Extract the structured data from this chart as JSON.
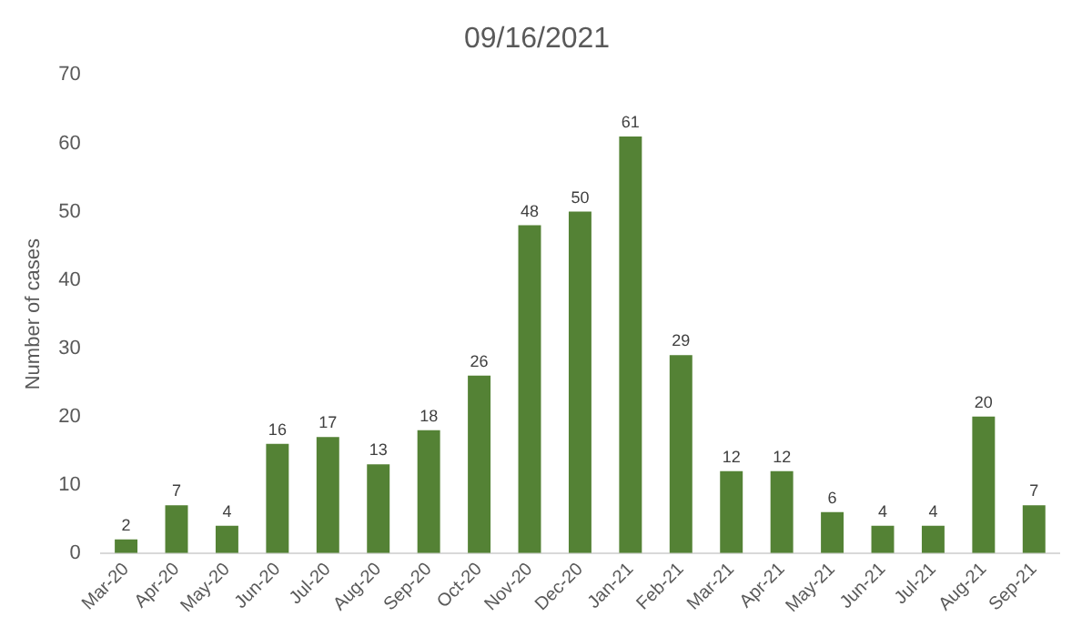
{
  "chart_data": {
    "type": "bar",
    "title": "09/16/2021",
    "ylabel": "Number of cases",
    "categories": [
      "Mar-20",
      "Apr-20",
      "May-20",
      "Jun-20",
      "Jul-20",
      "Aug-20",
      "Sep-20",
      "Oct-20",
      "Nov-20",
      "Dec-20",
      "Jan-21",
      "Feb-21",
      "Mar-21",
      "Apr-21",
      "May-21",
      "Jun-21",
      "Jul-21",
      "Aug-21",
      "Sep-21"
    ],
    "values": [
      2,
      7,
      4,
      16,
      17,
      13,
      18,
      26,
      48,
      50,
      61,
      29,
      12,
      12,
      6,
      4,
      4,
      20,
      7
    ],
    "color": "#548235",
    "ylim": [
      0,
      70
    ],
    "yticks": [
      0,
      10,
      20,
      30,
      40,
      50,
      60,
      70
    ],
    "data_labels": true,
    "grid": false,
    "legend": false
  }
}
